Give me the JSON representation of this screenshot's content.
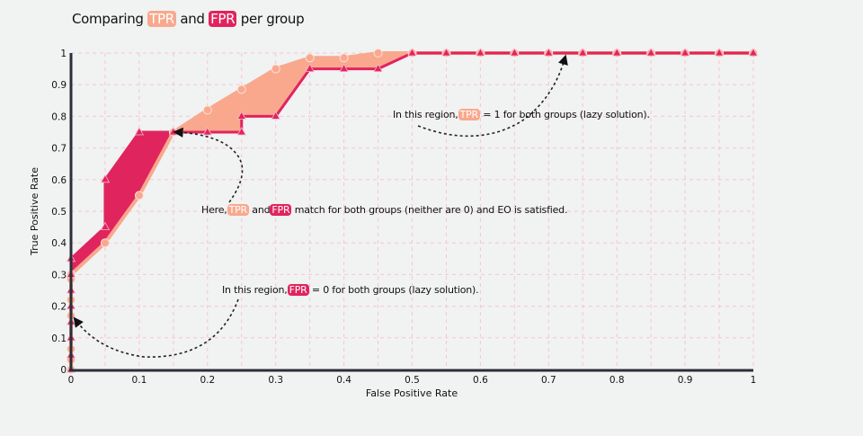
{
  "title": {
    "prefix": "Comparing",
    "tpr": "TPR",
    "and": "and",
    "fpr": "FPR",
    "suffix": "per group"
  },
  "annotations": {
    "tpr_one": {
      "prefix": "In this region,",
      "badge": "TPR",
      "suffix": "= 1 for both groups (lazy solution)."
    },
    "match": {
      "prefix": "Here,",
      "tpr": "TPR",
      "and": "and",
      "fpr": "FPR",
      "suffix": "match for both groups (neither are 0) and EO is satisfied."
    },
    "fpr_zero": {
      "prefix": "In this region,",
      "badge": "FPR",
      "suffix": "= 0 for both groups (lazy solution)."
    }
  },
  "colors": {
    "group_a": "#f9a88e",
    "group_b": "#e0245e",
    "axis": "#2b2f38",
    "grid": "#f4c6d2"
  },
  "chart_data": {
    "type": "line",
    "title": "Comparing TPR and FPR per group",
    "xlabel": "False Positive Rate",
    "ylabel": "True Positive Rate",
    "xlim": [
      0,
      1
    ],
    "ylim": [
      0,
      1
    ],
    "xticks": [
      "0",
      "0.1",
      "0.2",
      "0.3",
      "0.4",
      "0.5",
      "0.6",
      "0.7",
      "0.8",
      "0.9",
      "1"
    ],
    "yticks": [
      "0",
      "0.1",
      "0.2",
      "0.3",
      "0.4",
      "0.5",
      "0.6",
      "0.7",
      "0.8",
      "0.9",
      "1"
    ],
    "grid": true,
    "series": [
      {
        "marker": "circle",
        "color": "#f9a88e",
        "x": [
          0,
          0,
          0,
          0,
          0,
          0,
          0,
          0.05,
          0.1,
          0.15,
          0.2,
          0.25,
          0.3,
          0.35,
          0.4,
          0.45,
          0.5,
          0.55,
          0.6,
          0.65,
          0.7,
          0.75,
          0.8,
          0.85,
          0.9,
          0.95,
          1
        ],
        "y": [
          0,
          0.03,
          0.065,
          0.17,
          0.22,
          0.285,
          0.3,
          0.4,
          0.55,
          0.75,
          0.82,
          0.885,
          0.95,
          0.985,
          0.985,
          1,
          1,
          1,
          1,
          1,
          1,
          1,
          1,
          1,
          1,
          1,
          1
        ]
      },
      {
        "marker": "triangle",
        "color": "#e0245e",
        "x": [
          0,
          0,
          0,
          0,
          0,
          0,
          0,
          0,
          0.05,
          0.05,
          0.1,
          0.15,
          0.2,
          0.25,
          0.25,
          0.3,
          0.35,
          0.4,
          0.45,
          0.5,
          0.55,
          0.6,
          0.65,
          0.7,
          0.75,
          0.8,
          0.85,
          0.9,
          0.95,
          1
        ],
        "y": [
          0,
          0.045,
          0.1,
          0.15,
          0.2,
          0.25,
          0.3,
          0.35,
          0.45,
          0.6,
          0.75,
          0.75,
          0.75,
          0.75,
          0.8,
          0.8,
          0.95,
          0.95,
          0.95,
          1,
          1,
          1,
          1,
          1,
          1,
          1,
          1,
          1,
          1,
          1
        ]
      }
    ]
  }
}
